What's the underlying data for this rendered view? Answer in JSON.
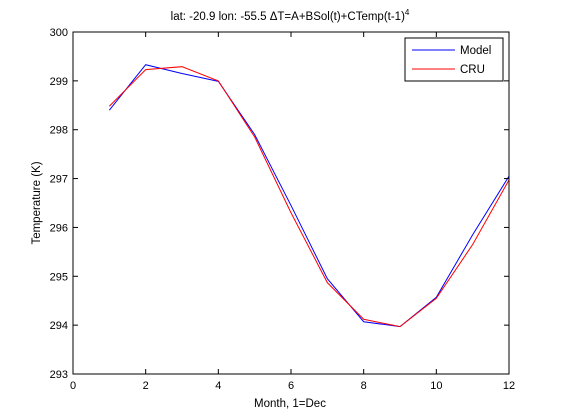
{
  "chart_data": {
    "type": "line",
    "title": "lat: -20.9 lon: -55.5  ΔT=A+BSol(t)+CTemp(t-1)",
    "title_superscript": "4",
    "xlabel": "Month, 1=Dec",
    "ylabel": "Temperature (K)",
    "xlim": [
      0,
      12
    ],
    "ylim": [
      293,
      300
    ],
    "xticks": [
      0,
      2,
      4,
      6,
      8,
      10,
      12
    ],
    "yticks": [
      293,
      294,
      295,
      296,
      297,
      298,
      299,
      300
    ],
    "grid": false,
    "legend": "top-right",
    "x": [
      1,
      2,
      3,
      4,
      5,
      6,
      7,
      8,
      9,
      10,
      11,
      12
    ],
    "series": [
      {
        "name": "Model",
        "color": "#0000ff",
        "values": [
          298.4,
          299.33,
          299.15,
          298.99,
          297.9,
          296.45,
          294.95,
          294.07,
          293.97,
          294.57,
          295.85,
          297.05
        ]
      },
      {
        "name": "CRU",
        "color": "#ff0000",
        "values": [
          298.48,
          299.23,
          299.29,
          299.0,
          297.85,
          296.3,
          294.87,
          294.12,
          293.97,
          294.55,
          295.65,
          296.97
        ]
      }
    ]
  }
}
